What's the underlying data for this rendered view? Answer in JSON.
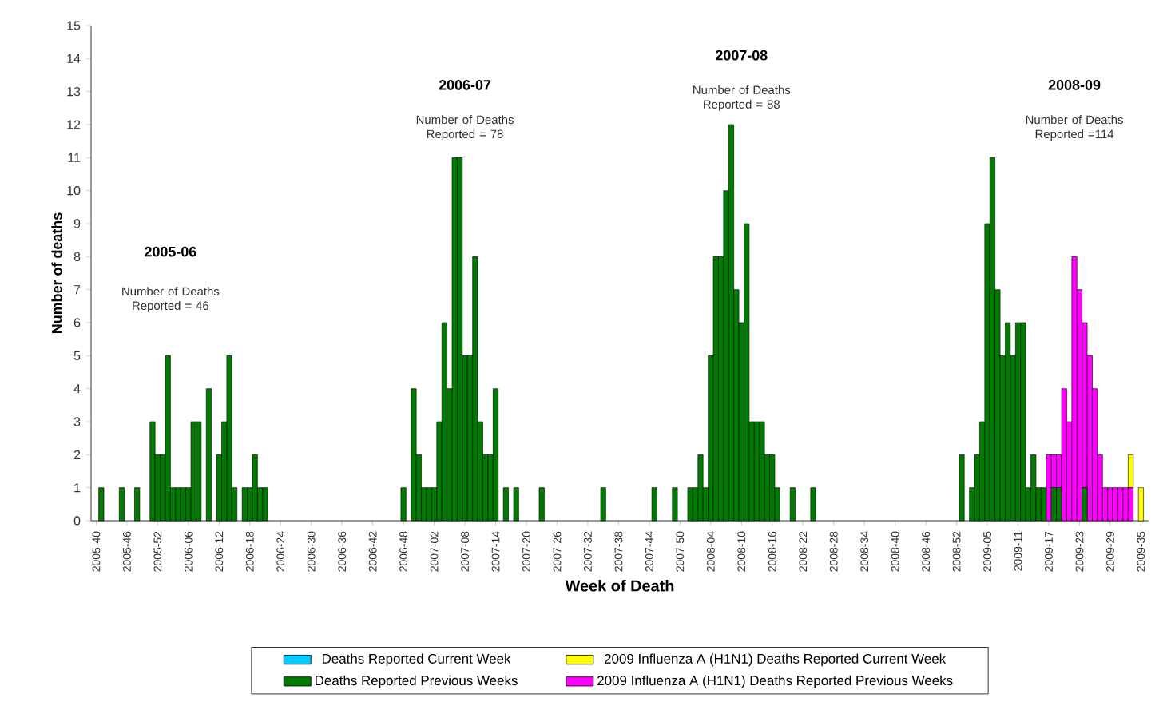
{
  "chart_data": {
    "type": "bar",
    "stacked": true,
    "xlabel": "Week of Death",
    "ylabel": "Number of deaths",
    "ylim": [
      0,
      15
    ],
    "yticks": [
      0,
      1,
      2,
      3,
      4,
      5,
      6,
      7,
      8,
      9,
      10,
      11,
      12,
      13,
      14,
      15
    ],
    "legend": "bottom",
    "annotations": [
      "2005-06",
      "Number of Deaths Reported = 46",
      "2006-07",
      "Number of Deaths Reported = 78",
      "2007-08",
      "Number of Deaths Reported = 88",
      "2008-09",
      "Number of Deaths Reported =114"
    ],
    "categories": [
      "2005-40",
      null,
      null,
      null,
      null,
      null,
      "2005-46",
      null,
      null,
      null,
      null,
      null,
      "2005-52",
      null,
      null,
      null,
      null,
      null,
      "2006-06",
      null,
      null,
      null,
      null,
      null,
      "2006-12",
      null,
      null,
      null,
      null,
      null,
      "2006-18",
      null,
      null,
      null,
      null,
      null,
      "2006-24",
      null,
      null,
      null,
      null,
      null,
      "2006-30",
      null,
      null,
      null,
      null,
      null,
      "2006-36",
      null,
      null,
      null,
      null,
      null,
      "2006-42",
      null,
      null,
      null,
      null,
      null,
      "2006-48",
      null,
      null,
      null,
      null,
      null,
      "2007-02",
      null,
      null,
      null,
      null,
      null,
      "2007-08",
      null,
      null,
      null,
      null,
      null,
      "2007-14",
      null,
      null,
      null,
      null,
      null,
      "2007-20",
      null,
      null,
      null,
      null,
      null,
      "2007-26",
      null,
      null,
      null,
      null,
      null,
      "2007-32",
      null,
      null,
      null,
      null,
      null,
      "2007-38",
      null,
      null,
      null,
      null,
      null,
      "2007-44",
      null,
      null,
      null,
      null,
      null,
      "2007-50",
      null,
      null,
      null,
      null,
      null,
      "2008-04",
      null,
      null,
      null,
      null,
      null,
      "2008-10",
      null,
      null,
      null,
      null,
      null,
      "2008-16",
      null,
      null,
      null,
      null,
      null,
      "2008-22",
      null,
      null,
      null,
      null,
      null,
      "2008-28",
      null,
      null,
      null,
      null,
      null,
      "2008-34",
      null,
      null,
      null,
      null,
      null,
      "2008-40",
      null,
      null,
      null,
      null,
      null,
      "2008-46",
      null,
      null,
      null,
      null,
      null,
      "2008-52",
      null,
      null,
      null,
      null,
      null,
      "2009-05",
      null,
      null,
      null,
      null,
      null,
      "2009-11",
      null,
      null,
      null,
      null,
      null,
      "2009-17",
      null,
      null,
      null,
      null,
      null,
      "2009-23",
      null,
      null,
      null,
      null,
      null,
      "2009-29",
      null,
      null,
      null,
      null,
      null,
      "2009-35"
    ],
    "series": [
      {
        "name": "Deaths Reported Current Week",
        "color": "#00ccff",
        "values": [
          0,
          0,
          0,
          0,
          0,
          0,
          0,
          0,
          0,
          0,
          0,
          0,
          0,
          0,
          0,
          0,
          0,
          0,
          0,
          0,
          0,
          0,
          0,
          0,
          0,
          0,
          0,
          0,
          0,
          0,
          0,
          0,
          0,
          0,
          0,
          0,
          0,
          0,
          0,
          0,
          0,
          0,
          0,
          0,
          0,
          0,
          0,
          0,
          0,
          0,
          0,
          0,
          0,
          0,
          0,
          0,
          0,
          0,
          0,
          0,
          0,
          0,
          0,
          0,
          0,
          0,
          0,
          0,
          0,
          0,
          0,
          0,
          0,
          0,
          0,
          0,
          0,
          0,
          0,
          0,
          0,
          0,
          0,
          0,
          0,
          0,
          0,
          0,
          0,
          0,
          0,
          0,
          0,
          0,
          0,
          0,
          0,
          0,
          0,
          0,
          0,
          0,
          0,
          0,
          0,
          0,
          0,
          0,
          0,
          0,
          0,
          0,
          0,
          0,
          0,
          0,
          0,
          0,
          0,
          0,
          0,
          0,
          0,
          0,
          0,
          0,
          0,
          0,
          0,
          0,
          0,
          0,
          0,
          0,
          0,
          0,
          0,
          0,
          0,
          0,
          0,
          0,
          0,
          0,
          0,
          0,
          0,
          0,
          0,
          0,
          0,
          0,
          0,
          0,
          0,
          0,
          0,
          0,
          0,
          0,
          0,
          0,
          0,
          0,
          0,
          0,
          0,
          0,
          0,
          0,
          0,
          0,
          0,
          0,
          0,
          0,
          0,
          0,
          0,
          0,
          0,
          0,
          0,
          0,
          0,
          0,
          0,
          0,
          0,
          0,
          0,
          0,
          0,
          0,
          0,
          0,
          0,
          0,
          0,
          0,
          0,
          0,
          0,
          0,
          0
        ]
      },
      {
        "name": "Deaths Reported Previous Weeks",
        "color": "#007a00",
        "values": [
          0,
          1,
          0,
          0,
          0,
          1,
          0,
          0,
          1,
          0,
          0,
          3,
          2,
          2,
          5,
          1,
          1,
          1,
          1,
          3,
          3,
          0,
          4,
          0,
          2,
          3,
          5,
          1,
          0,
          1,
          1,
          2,
          1,
          1,
          0,
          0,
          0,
          0,
          0,
          0,
          0,
          0,
          0,
          0,
          0,
          0,
          0,
          0,
          0,
          0,
          0,
          0,
          0,
          0,
          0,
          0,
          0,
          0,
          0,
          0,
          1,
          0,
          4,
          2,
          1,
          1,
          1,
          3,
          6,
          4,
          11,
          11,
          5,
          5,
          8,
          3,
          2,
          2,
          4,
          0,
          1,
          0,
          1,
          0,
          0,
          0,
          0,
          1,
          0,
          0,
          0,
          0,
          0,
          0,
          0,
          0,
          0,
          0,
          0,
          1,
          0,
          0,
          0,
          0,
          0,
          0,
          0,
          0,
          0,
          1,
          0,
          0,
          0,
          1,
          0,
          0,
          1,
          1,
          2,
          1,
          5,
          8,
          8,
          10,
          12,
          7,
          6,
          9,
          3,
          3,
          3,
          2,
          2,
          1,
          0,
          0,
          1,
          0,
          0,
          0,
          1,
          0,
          0,
          0,
          0,
          0,
          0,
          0,
          0,
          0,
          0,
          0,
          0,
          0,
          0,
          0,
          0,
          0,
          0,
          0,
          0,
          0,
          0,
          0,
          0,
          0,
          0,
          0,
          0,
          2,
          0,
          1,
          2,
          3,
          9,
          11,
          7,
          5,
          6,
          5,
          6,
          6,
          1,
          2,
          1,
          1,
          0,
          1,
          1,
          0,
          0,
          0,
          0,
          1,
          0,
          0,
          0,
          0,
          0,
          0,
          0,
          0,
          0,
          0,
          0
        ]
      },
      {
        "name": "2009 Influenza A (H1N1) Deaths Reported Previous Weeks",
        "color": "#ff00ff",
        "values": [
          0,
          0,
          0,
          0,
          0,
          0,
          0,
          0,
          0,
          0,
          0,
          0,
          0,
          0,
          0,
          0,
          0,
          0,
          0,
          0,
          0,
          0,
          0,
          0,
          0,
          0,
          0,
          0,
          0,
          0,
          0,
          0,
          0,
          0,
          0,
          0,
          0,
          0,
          0,
          0,
          0,
          0,
          0,
          0,
          0,
          0,
          0,
          0,
          0,
          0,
          0,
          0,
          0,
          0,
          0,
          0,
          0,
          0,
          0,
          0,
          0,
          0,
          0,
          0,
          0,
          0,
          0,
          0,
          0,
          0,
          0,
          0,
          0,
          0,
          0,
          0,
          0,
          0,
          0,
          0,
          0,
          0,
          0,
          0,
          0,
          0,
          0,
          0,
          0,
          0,
          0,
          0,
          0,
          0,
          0,
          0,
          0,
          0,
          0,
          0,
          0,
          0,
          0,
          0,
          0,
          0,
          0,
          0,
          0,
          0,
          0,
          0,
          0,
          0,
          0,
          0,
          0,
          0,
          0,
          0,
          0,
          0,
          0,
          0,
          0,
          0,
          0,
          0,
          0,
          0,
          0,
          0,
          0,
          0,
          0,
          0,
          0,
          0,
          0,
          0,
          0,
          0,
          0,
          0,
          0,
          0,
          0,
          0,
          0,
          0,
          0,
          0,
          0,
          0,
          0,
          0,
          0,
          0,
          0,
          0,
          0,
          0,
          0,
          0,
          0,
          0,
          0,
          0,
          0,
          0,
          0,
          0,
          0,
          0,
          0,
          0,
          0,
          0,
          0,
          0,
          0,
          0,
          0,
          0,
          0,
          0,
          2,
          1,
          1,
          4,
          3,
          8,
          7,
          5,
          5,
          4,
          2,
          1,
          1,
          1,
          1,
          1,
          1,
          0,
          0
        ]
      },
      {
        "name": "2009 Influenza A (H1N1) Deaths Reported Current Week",
        "color": "#ffff00",
        "values": [
          0,
          0,
          0,
          0,
          0,
          0,
          0,
          0,
          0,
          0,
          0,
          0,
          0,
          0,
          0,
          0,
          0,
          0,
          0,
          0,
          0,
          0,
          0,
          0,
          0,
          0,
          0,
          0,
          0,
          0,
          0,
          0,
          0,
          0,
          0,
          0,
          0,
          0,
          0,
          0,
          0,
          0,
          0,
          0,
          0,
          0,
          0,
          0,
          0,
          0,
          0,
          0,
          0,
          0,
          0,
          0,
          0,
          0,
          0,
          0,
          0,
          0,
          0,
          0,
          0,
          0,
          0,
          0,
          0,
          0,
          0,
          0,
          0,
          0,
          0,
          0,
          0,
          0,
          0,
          0,
          0,
          0,
          0,
          0,
          0,
          0,
          0,
          0,
          0,
          0,
          0,
          0,
          0,
          0,
          0,
          0,
          0,
          0,
          0,
          0,
          0,
          0,
          0,
          0,
          0,
          0,
          0,
          0,
          0,
          0,
          0,
          0,
          0,
          0,
          0,
          0,
          0,
          0,
          0,
          0,
          0,
          0,
          0,
          0,
          0,
          0,
          0,
          0,
          0,
          0,
          0,
          0,
          0,
          0,
          0,
          0,
          0,
          0,
          0,
          0,
          0,
          0,
          0,
          0,
          0,
          0,
          0,
          0,
          0,
          0,
          0,
          0,
          0,
          0,
          0,
          0,
          0,
          0,
          0,
          0,
          0,
          0,
          0,
          0,
          0,
          0,
          0,
          0,
          0,
          0,
          0,
          0,
          0,
          0,
          0,
          0,
          0,
          0,
          0,
          0,
          0,
          0,
          0,
          0,
          0,
          0,
          0,
          0,
          0,
          0,
          0,
          0,
          0,
          0,
          0,
          0,
          0,
          0,
          0,
          0,
          0,
          0,
          1,
          0,
          1
        ]
      }
    ]
  }
}
